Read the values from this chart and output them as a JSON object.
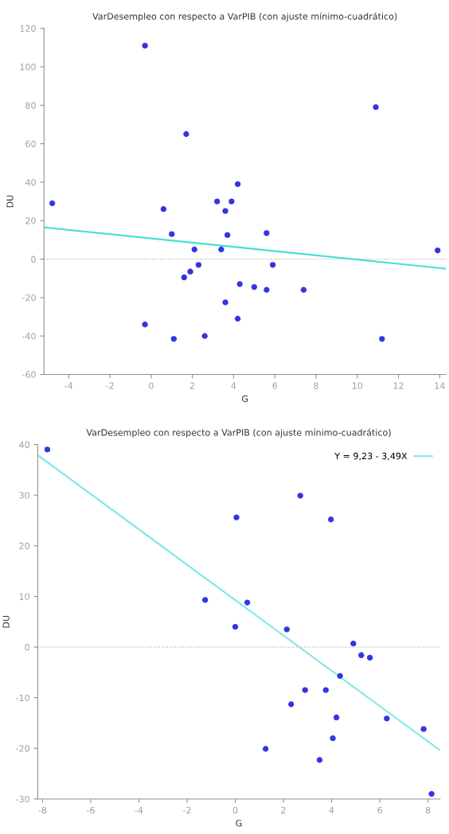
{
  "chart_data": [
    {
      "type": "scatter",
      "title": "VarDesempleo con respecto a VarPIB (con ajuste mínimo-cuadrático)",
      "xlabel": "G",
      "ylabel": "DU",
      "xlim": [
        -5.2,
        14.3
      ],
      "ylim": [
        -60,
        120
      ],
      "xticks": [
        -4,
        -2,
        0,
        2,
        4,
        6,
        8,
        10,
        12,
        14
      ],
      "yticks": [
        -60,
        -40,
        -20,
        0,
        20,
        40,
        60,
        80,
        100,
        120
      ],
      "grid": false,
      "legend": false,
      "ref_lines": [
        {
          "axis": "y",
          "value": 0,
          "line_style": "dotted",
          "color": "#b0b0b0"
        }
      ],
      "series": [
        {
          "marker": "circle",
          "color": "#3535e0",
          "x": [
            -4.8,
            -0.3,
            1.7,
            10.9,
            4.2,
            3.2,
            3.9,
            0.6,
            3.6,
            1.0,
            3.7,
            5.6,
            13.9,
            2.1,
            3.4,
            2.3,
            5.9,
            1.9,
            1.6,
            4.3,
            5.0,
            5.6,
            7.4,
            3.6,
            4.2,
            -0.3,
            1.1,
            2.6,
            11.2
          ],
          "values": [
            29,
            111,
            65,
            79,
            39,
            30,
            30,
            26,
            25,
            13,
            12.5,
            13.5,
            4.5,
            5,
            5,
            -3,
            -3,
            -6.5,
            -9.5,
            -13,
            -14.5,
            -16,
            -16,
            -22.5,
            -31,
            -34,
            -41.5,
            -40,
            -41.5
          ]
        },
        {
          "type": "line",
          "marker": "none",
          "line_style": "solid",
          "color": "#40e0d0",
          "x": [
            -5.2,
            14.3
          ],
          "values": [
            16.5,
            -5
          ]
        }
      ]
    },
    {
      "type": "scatter",
      "title": "VarDesempleo con respecto a VarPIB (con ajuste mínimo-cuadrático)",
      "xlabel": "G",
      "ylabel": "DU",
      "xlim": [
        -8.2,
        8.5
      ],
      "ylim": [
        -30,
        40
      ],
      "xticks": [
        -8,
        -6,
        -4,
        -2,
        0,
        2,
        4,
        6,
        8
      ],
      "yticks": [
        -30,
        -20,
        -10,
        0,
        10,
        20,
        30,
        40
      ],
      "grid": false,
      "legend": "top right",
      "ref_lines": [
        {
          "axis": "y",
          "value": 0,
          "line_style": "dotted",
          "color": "#b0b0b0"
        }
      ],
      "series": [
        {
          "marker": "circle",
          "color": "#3535e0",
          "x": [
            -7.8,
            -1.25,
            0.05,
            0.5,
            2.7,
            3.97,
            0.0,
            2.14,
            4.9,
            5.23,
            5.59,
            4.35,
            2.9,
            3.76,
            2.32,
            4.2,
            6.29,
            7.82,
            4.05,
            1.26,
            3.5,
            8.15
          ],
          "values": [
            39,
            9.3,
            25.6,
            8.8,
            29.9,
            25.2,
            4.0,
            3.5,
            0.7,
            -1.6,
            -2.1,
            -5.7,
            -8.5,
            -8.5,
            -11.3,
            -13.9,
            -14.1,
            -16.2,
            -18,
            -20.1,
            -22.3,
            -29
          ]
        },
        {
          "type": "line",
          "name": "Y = 9,23 - 3,49X",
          "marker": "none",
          "line_style": "solid",
          "color": "#80e8e8",
          "x": [
            -8.2,
            8.5
          ],
          "values": [
            37.9,
            -20.4
          ]
        }
      ]
    }
  ]
}
